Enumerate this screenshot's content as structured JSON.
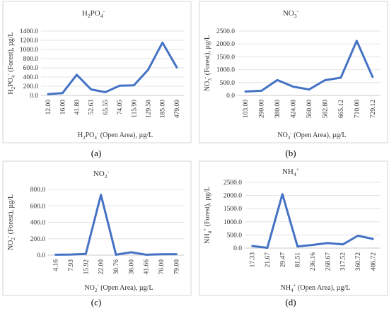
{
  "chart_data": [
    {
      "type": "line",
      "letter": "(a)",
      "title": [
        "H",
        "2",
        "PO",
        "4",
        "-"
      ],
      "xlabel": [
        "H",
        "2",
        "PO",
        "4",
        "-",
        " (Open Area), µg/L"
      ],
      "ylabel": [
        "H",
        "2",
        "PO",
        "4",
        "-",
        " (Forest), µg/L"
      ],
      "categories": [
        "12.00",
        "16.00",
        "41.80",
        "52.63",
        "65.55",
        "74.05",
        "115.90",
        "129.58",
        "185.00",
        "479.09"
      ],
      "values": [
        30,
        50,
        450,
        130,
        70,
        210,
        220,
        560,
        1150,
        610
      ],
      "ylim": [
        0,
        1400
      ],
      "yticks": [
        "0.0",
        "200.0",
        "400.0",
        "600.0",
        "800.0",
        "1000.0",
        "1200.0",
        "1400.0"
      ]
    },
    {
      "type": "line",
      "letter": "(b)",
      "title": [
        "NO",
        "3",
        "-"
      ],
      "xlabel": [
        "NO",
        "3",
        "-",
        " (Open Area), µg/L"
      ],
      "ylabel": [
        "NO",
        "3",
        "-",
        " (Forest), µg/L"
      ],
      "categories": [
        "103.00",
        "290.00",
        "380.00",
        "424.08",
        "560.00",
        "582.80",
        "665.12",
        "710.00",
        "729.12"
      ],
      "values": [
        150,
        180,
        600,
        340,
        230,
        590,
        690,
        2120,
        720
      ],
      "ylim": [
        0,
        2500
      ],
      "yticks": [
        "0.0",
        "500.0",
        "1000.0",
        "1500.0",
        "2000.0",
        "2500.0"
      ]
    },
    {
      "type": "line",
      "letter": "(c)",
      "title": [
        "NO",
        "2",
        "-"
      ],
      "xlabel": [
        "NO",
        "2",
        "-",
        " (Open Area), µg/L"
      ],
      "ylabel": [
        "NO",
        "2",
        "-",
        " (Forest), µg/L"
      ],
      "categories": [
        "4.16",
        "7.93",
        "15.92",
        "22.00",
        "30.76",
        "36.00",
        "41.66",
        "76.00",
        "79.00"
      ],
      "values": [
        5,
        8,
        15,
        735,
        5,
        35,
        5,
        10,
        12
      ],
      "ylim": [
        0,
        800
      ],
      "yticks": [
        "0.0",
        "200.0",
        "400.0",
        "600.0",
        "800.0"
      ]
    },
    {
      "type": "line",
      "letter": "(d)",
      "title": [
        "NH",
        "4",
        "+"
      ],
      "xlabel": [
        "NH",
        "4",
        "+",
        " (Open Area), µg/L"
      ],
      "ylabel": [
        "NH",
        "4",
        "+",
        " (Forest), µg/L"
      ],
      "categories": [
        "17.33",
        "21.67",
        "29.47",
        "81.51",
        "236.16",
        "268.67",
        "317.52",
        "360.72",
        "486.72"
      ],
      "values": [
        80,
        10,
        2050,
        60,
        120,
        190,
        140,
        470,
        350
      ],
      "ylim": [
        0,
        2500
      ],
      "yticks": [
        "0.0",
        "500.0",
        "1000.0",
        "1500.0",
        "2000.0",
        "2500.0"
      ]
    }
  ],
  "colors": {
    "series": "#4472c4",
    "grid": "#e3e3e3",
    "frame": "#d6d6d6"
  }
}
